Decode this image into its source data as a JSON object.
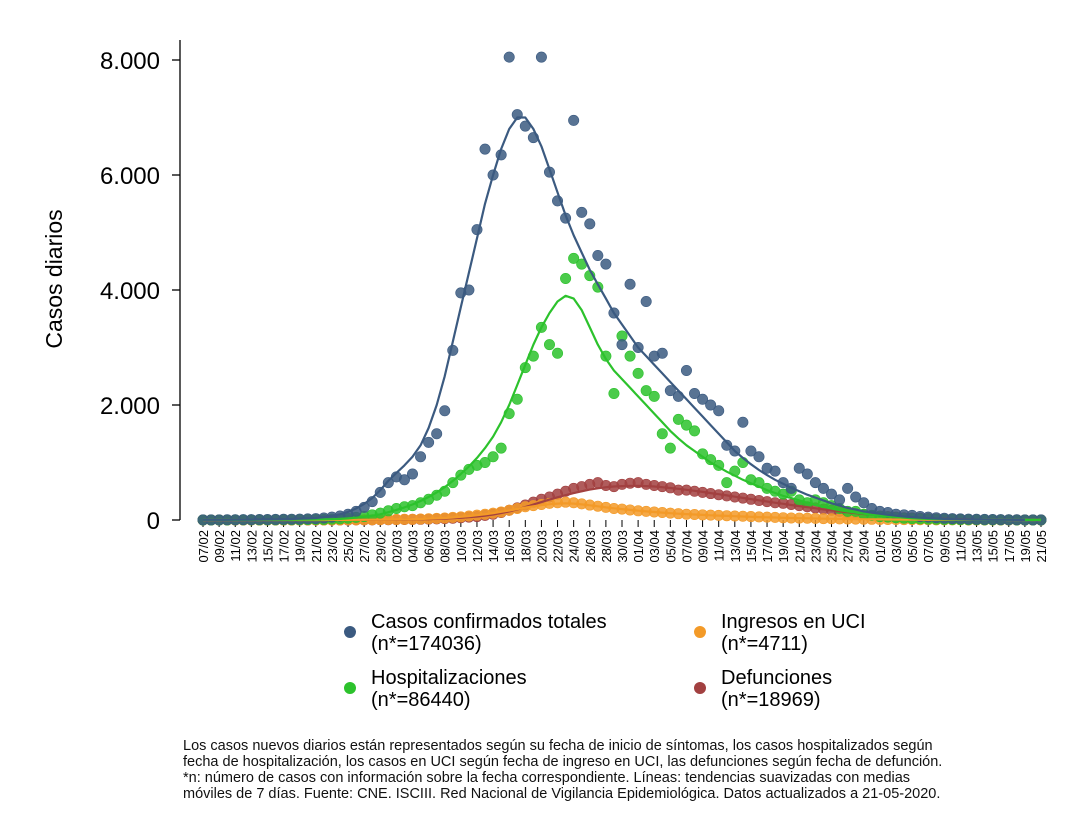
{
  "chart_data": {
    "type": "scatter",
    "title": "",
    "xlabel": "",
    "ylabel": "Casos diarios",
    "ylim": [
      0,
      8000
    ],
    "yticks": [
      0,
      2000,
      4000,
      6000,
      8000
    ],
    "ytick_labels": [
      "0",
      "2.000",
      "4.000",
      "6.000",
      "8.000"
    ],
    "grid": false,
    "legend_position": "bottom",
    "x": [
      "07/02",
      "08/02",
      "09/02",
      "10/02",
      "11/02",
      "12/02",
      "13/02",
      "14/02",
      "15/02",
      "16/02",
      "17/02",
      "18/02",
      "19/02",
      "20/02",
      "21/02",
      "22/02",
      "23/02",
      "24/02",
      "25/02",
      "26/02",
      "27/02",
      "28/02",
      "29/02",
      "01/03",
      "02/03",
      "03/03",
      "04/03",
      "05/03",
      "06/03",
      "07/03",
      "08/03",
      "09/03",
      "10/03",
      "11/03",
      "12/03",
      "13/03",
      "14/03",
      "15/03",
      "16/03",
      "17/03",
      "18/03",
      "19/03",
      "20/03",
      "21/03",
      "22/03",
      "23/03",
      "24/03",
      "25/03",
      "26/03",
      "27/03",
      "28/03",
      "29/03",
      "30/03",
      "31/03",
      "01/04",
      "02/04",
      "03/04",
      "04/04",
      "05/04",
      "06/04",
      "07/04",
      "08/04",
      "09/04",
      "10/04",
      "11/04",
      "12/04",
      "13/04",
      "14/04",
      "15/04",
      "16/04",
      "17/04",
      "18/04",
      "19/04",
      "20/04",
      "21/04",
      "22/04",
      "23/04",
      "24/04",
      "25/04",
      "26/04",
      "27/04",
      "28/04",
      "29/04",
      "30/04",
      "01/05",
      "02/05",
      "03/05",
      "04/05",
      "05/05",
      "06/05",
      "07/05",
      "08/05",
      "09/05",
      "10/05",
      "11/05",
      "12/05",
      "13/05",
      "14/05",
      "15/05",
      "16/05",
      "17/05",
      "18/05",
      "19/05",
      "20/05",
      "21/05"
    ],
    "x_tick_labels": [
      "07/02",
      "09/02",
      "11/02",
      "13/02",
      "15/02",
      "17/02",
      "19/02",
      "21/02",
      "23/02",
      "25/02",
      "27/02",
      "29/02",
      "02/03",
      "04/03",
      "06/03",
      "08/03",
      "10/03",
      "12/03",
      "14/03",
      "16/03",
      "18/03",
      "20/03",
      "22/03",
      "24/03",
      "26/03",
      "28/03",
      "30/03",
      "01/04",
      "03/04",
      "05/04",
      "07/04",
      "09/04",
      "11/04",
      "13/04",
      "15/04",
      "17/04",
      "19/04",
      "21/04",
      "23/04",
      "25/04",
      "27/04",
      "29/04",
      "01/05",
      "03/05",
      "05/05",
      "07/05",
      "09/05",
      "11/05",
      "13/05",
      "15/05",
      "17/05",
      "19/05",
      "21/05"
    ],
    "series": [
      {
        "name": "Casos confirmados totales",
        "n_label": "(n*=174036)",
        "color": "#3b5a80",
        "values": [
          3,
          3,
          3,
          4,
          5,
          6,
          7,
          8,
          9,
          10,
          12,
          14,
          16,
          20,
          25,
          35,
          50,
          70,
          100,
          150,
          220,
          320,
          480,
          650,
          750,
          700,
          800,
          1100,
          1350,
          1500,
          1900,
          2950,
          3950,
          4000,
          5050,
          6450,
          6000,
          6350,
          8050,
          7050,
          6850,
          6650,
          8050,
          6050,
          5550,
          5250,
          6950,
          5350,
          5150,
          4600,
          4450,
          3600,
          3050,
          4100,
          3000,
          3800,
          2850,
          2900,
          2250,
          2150,
          2600,
          2200,
          2100,
          2000,
          1900,
          1300,
          1200,
          1700,
          1200,
          1100,
          900,
          850,
          650,
          550,
          900,
          800,
          650,
          550,
          450,
          350,
          550,
          400,
          300,
          200,
          150,
          130,
          100,
          90,
          80,
          60,
          50,
          40,
          30,
          25,
          20,
          15,
          12,
          10,
          8,
          6,
          5,
          4,
          3,
          3,
          2
        ],
        "trend": [
          3,
          3,
          3,
          4,
          5,
          6,
          7,
          8,
          10,
          12,
          15,
          18,
          22,
          28,
          35,
          50,
          70,
          100,
          140,
          200,
          280,
          380,
          520,
          680,
          820,
          950,
          1100,
          1300,
          1600,
          2000,
          2500,
          3100,
          3700,
          4300,
          4900,
          5500,
          6000,
          6450,
          6800,
          7000,
          7000,
          6800,
          6500,
          6100,
          5700,
          5300,
          4950,
          4650,
          4350,
          4100,
          3850,
          3600,
          3400,
          3200,
          3000,
          2850,
          2700,
          2550,
          2400,
          2250,
          2100,
          1950,
          1800,
          1650,
          1500,
          1350,
          1200,
          1080,
          970,
          870,
          780,
          700,
          630,
          560,
          500,
          440,
          390,
          340,
          290,
          250,
          210,
          180,
          150,
          130,
          110,
          90,
          75,
          60,
          50,
          40,
          33,
          26,
          20,
          15,
          12,
          9,
          7,
          5,
          4,
          3,
          3,
          2,
          2
        ]
      },
      {
        "name": "Hospitalizaciones",
        "n_label": "(n*=86440)",
        "color": "#2cc22c",
        "values": [
          1,
          1,
          1,
          1,
          2,
          2,
          2,
          3,
          3,
          3,
          4,
          4,
          5,
          6,
          8,
          10,
          15,
          20,
          30,
          45,
          60,
          90,
          120,
          160,
          200,
          230,
          250,
          300,
          360,
          430,
          500,
          650,
          780,
          880,
          950,
          1000,
          1100,
          1250,
          1850,
          2100,
          2650,
          2850,
          3350,
          3050,
          2900,
          4200,
          4550,
          4450,
          4250,
          4050,
          2850,
          2200,
          3200,
          2850,
          2550,
          2250,
          2150,
          1500,
          1250,
          1750,
          1650,
          1550,
          1150,
          1050,
          950,
          650,
          850,
          1000,
          700,
          650,
          550,
          500,
          450,
          500,
          350,
          300,
          350,
          300,
          250,
          200,
          150,
          150,
          100,
          80,
          60,
          50,
          40,
          30,
          25,
          20,
          15,
          12,
          10,
          8,
          6,
          5,
          4,
          3,
          3,
          2,
          2,
          1,
          1,
          1,
          1
        ],
        "trend": [
          1,
          1,
          1,
          1,
          2,
          2,
          2,
          3,
          3,
          3,
          4,
          4,
          5,
          6,
          8,
          10,
          14,
          20,
          28,
          40,
          55,
          75,
          100,
          135,
          175,
          220,
          270,
          330,
          400,
          480,
          570,
          680,
          800,
          930,
          1080,
          1250,
          1450,
          1700,
          2000,
          2350,
          2700,
          3050,
          3350,
          3600,
          3800,
          3900,
          3850,
          3650,
          3350,
          3050,
          2800,
          2600,
          2450,
          2300,
          2150,
          2000,
          1850,
          1700,
          1550,
          1420,
          1300,
          1200,
          1100,
          1000,
          920,
          840,
          770,
          700,
          640,
          580,
          520,
          470,
          420,
          380,
          340,
          300,
          260,
          230,
          200,
          170,
          150,
          130,
          110,
          90,
          75,
          60,
          50,
          40,
          30,
          25,
          20,
          15,
          12,
          9,
          7,
          5,
          4,
          3,
          2,
          2,
          1,
          1,
          1,
          1,
          1
        ]
      },
      {
        "name": "Ingresos en UCI",
        "n_label": "(n*=4711)",
        "color": "#f39a28",
        "values": [
          0,
          0,
          0,
          0,
          0,
          0,
          0,
          0,
          0,
          0,
          0,
          0,
          0,
          0,
          0,
          0,
          1,
          1,
          2,
          3,
          4,
          5,
          6,
          8,
          10,
          12,
          14,
          18,
          22,
          28,
          35,
          45,
          55,
          70,
          85,
          100,
          120,
          140,
          170,
          200,
          230,
          250,
          270,
          290,
          300,
          310,
          300,
          280,
          260,
          240,
          220,
          200,
          190,
          175,
          160,
          150,
          140,
          130,
          120,
          110,
          100,
          95,
          90,
          85,
          80,
          75,
          70,
          65,
          60,
          55,
          50,
          45,
          40,
          35,
          32,
          30,
          28,
          25,
          22,
          20,
          18,
          16,
          14,
          12,
          10,
          9,
          8,
          7,
          6,
          5,
          4,
          3,
          3,
          2,
          2,
          1,
          1,
          1,
          1,
          1,
          0,
          0,
          0,
          0,
          0
        ],
        "trend": [
          0,
          0,
          0,
          0,
          0,
          0,
          0,
          0,
          0,
          0,
          0,
          0,
          0,
          0,
          0,
          0,
          1,
          1,
          2,
          3,
          4,
          5,
          6,
          8,
          10,
          12,
          15,
          18,
          22,
          28,
          35,
          44,
          55,
          68,
          83,
          100,
          120,
          142,
          165,
          190,
          215,
          238,
          258,
          275,
          285,
          290,
          285,
          272,
          255,
          238,
          220,
          204,
          189,
          175,
          162,
          150,
          139,
          129,
          119,
          110,
          102,
          95,
          88,
          82,
          76,
          71,
          66,
          61,
          56,
          51,
          47,
          43,
          39,
          35,
          32,
          29,
          26,
          23,
          21,
          19,
          17,
          15,
          13,
          12,
          10,
          9,
          8,
          7,
          6,
          5,
          4,
          3,
          3,
          2,
          2,
          1,
          1,
          1,
          1,
          1,
          0,
          0,
          0,
          0,
          0
        ]
      },
      {
        "name": "Defunciones",
        "n_label": "(n*=18969)",
        "color": "#a24040",
        "values": [
          0,
          0,
          0,
          0,
          0,
          0,
          0,
          0,
          0,
          0,
          0,
          0,
          0,
          0,
          0,
          0,
          1,
          1,
          1,
          2,
          2,
          3,
          4,
          5,
          6,
          8,
          10,
          12,
          15,
          20,
          25,
          30,
          40,
          50,
          60,
          80,
          100,
          130,
          170,
          210,
          260,
          310,
          360,
          400,
          450,
          500,
          550,
          580,
          620,
          650,
          600,
          580,
          620,
          640,
          650,
          620,
          600,
          580,
          560,
          520,
          520,
          500,
          480,
          460,
          440,
          420,
          400,
          380,
          360,
          340,
          320,
          300,
          290,
          270,
          250,
          230,
          210,
          190,
          170,
          150,
          130,
          110,
          95,
          80,
          70,
          60,
          50,
          40,
          35,
          30,
          25,
          20,
          16,
          13,
          10,
          8,
          6,
          5,
          4,
          3,
          2,
          2,
          1,
          1,
          1
        ],
        "trend": [
          0,
          0,
          0,
          0,
          0,
          0,
          0,
          0,
          0,
          0,
          0,
          0,
          0,
          0,
          0,
          0,
          1,
          1,
          1,
          2,
          2,
          3,
          4,
          5,
          6,
          8,
          10,
          13,
          16,
          20,
          25,
          31,
          39,
          49,
          61,
          77,
          96,
          120,
          150,
          185,
          225,
          268,
          312,
          355,
          395,
          432,
          468,
          500,
          528,
          552,
          570,
          582,
          590,
          594,
          594,
          590,
          582,
          571,
          557,
          542,
          525,
          507,
          488,
          468,
          448,
          427,
          406,
          385,
          364,
          343,
          322,
          301,
          281,
          261,
          241,
          222,
          203,
          185,
          167,
          150,
          134,
          119,
          105,
          92,
          80,
          69,
          59,
          50,
          42,
          35,
          29,
          24,
          19,
          15,
          12,
          9,
          7,
          5,
          4,
          3,
          2,
          2,
          1,
          1,
          1
        ]
      }
    ]
  },
  "legend_n_prefix": "(n*=",
  "footnote": [
    "Los casos nuevos diarios están representados según su fecha de inicio de síntomas, los casos hospitalizados según",
    "fecha de hospitalización, los casos en UCI según fecha de ingreso en UCI, las defunciones según fecha de defunción.",
    "*n: número de casos con información sobre la fecha correspondiente. Líneas: tendencias suavizadas con medias",
    "móviles de 7 días. Fuente: CNE. ISCIII. Red Nacional de Vigilancia Epidemiológica. Datos actualizados a 21-05-2020."
  ]
}
